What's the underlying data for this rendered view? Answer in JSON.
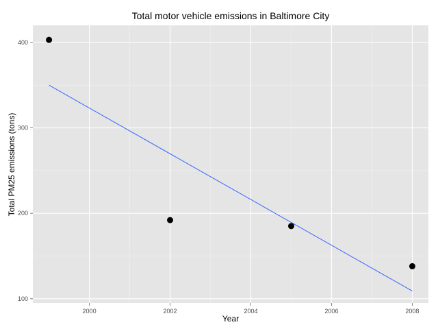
{
  "chart_data": {
    "type": "scatter",
    "title": "Total motor vehicle emissions in Baltimore City",
    "xlabel": "Year",
    "ylabel": "Total PM25 emissions (tons)",
    "xlim": [
      1998.6,
      2008.4
    ],
    "ylim": [
      95,
      420
    ],
    "x_ticks": [
      2000,
      2002,
      2004,
      2006,
      2008
    ],
    "x_tick_labels": [
      "2000",
      "2002",
      "2004",
      "2006",
      "2008"
    ],
    "y_ticks": [
      100,
      200,
      300,
      400
    ],
    "y_tick_labels": [
      "100",
      "200",
      "300",
      "400"
    ],
    "grid": true,
    "legend": "none",
    "points": [
      {
        "x": 1999,
        "y": 403
      },
      {
        "x": 2002,
        "y": 192
      },
      {
        "x": 2005,
        "y": 185
      },
      {
        "x": 2008,
        "y": 138
      }
    ],
    "fit_line": {
      "x": [
        1999,
        2008
      ],
      "y": [
        350,
        109
      ]
    },
    "colors": {
      "panel": "#e5e5e5",
      "grid_major": "#ffffff",
      "grid_minor": "#f2f2f2",
      "point": "#000000",
      "fit_line": "#3366ff"
    }
  }
}
